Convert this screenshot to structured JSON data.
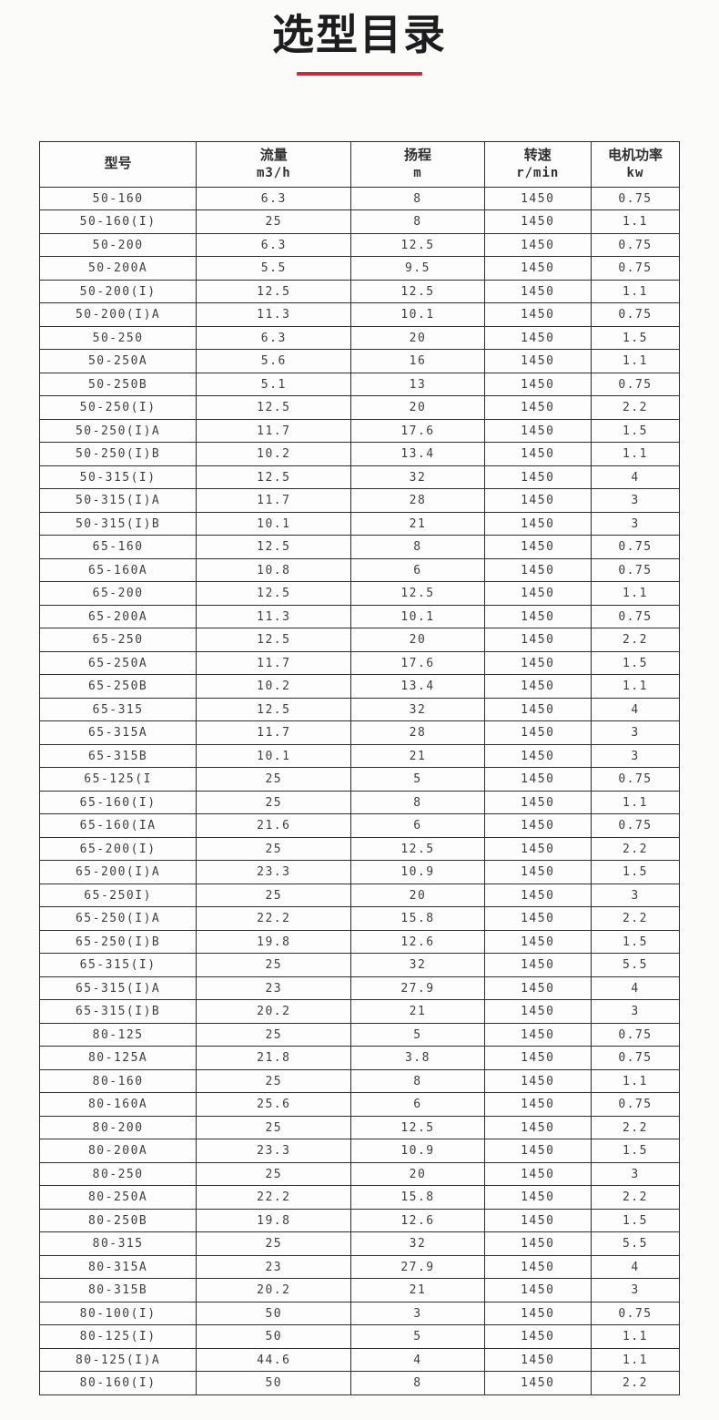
{
  "page": {
    "title": "选型目录",
    "accent_color": "#c42c3c"
  },
  "table": {
    "headers": [
      {
        "title": "型号",
        "unit": ""
      },
      {
        "title": "流量",
        "unit": "m3/h"
      },
      {
        "title": "扬程",
        "unit": "m"
      },
      {
        "title": "转速",
        "unit": "r/min"
      },
      {
        "title": "电机功率",
        "unit": "kw"
      }
    ],
    "rows": [
      [
        "50-160",
        "6.3",
        "8",
        "1450",
        "0.75"
      ],
      [
        "50-160(I)",
        "25",
        "8",
        "1450",
        "1.1"
      ],
      [
        "50-200",
        "6.3",
        "12.5",
        "1450",
        "0.75"
      ],
      [
        "50-200A",
        "5.5",
        "9.5",
        "1450",
        "0.75"
      ],
      [
        "50-200(I)",
        "12.5",
        "12.5",
        "1450",
        "1.1"
      ],
      [
        "50-200(I)A",
        "11.3",
        "10.1",
        "1450",
        "0.75"
      ],
      [
        "50-250",
        "6.3",
        "20",
        "1450",
        "1.5"
      ],
      [
        "50-250A",
        "5.6",
        "16",
        "1450",
        "1.1"
      ],
      [
        "50-250B",
        "5.1",
        "13",
        "1450",
        "0.75"
      ],
      [
        "50-250(I)",
        "12.5",
        "20",
        "1450",
        "2.2"
      ],
      [
        "50-250(I)A",
        "11.7",
        "17.6",
        "1450",
        "1.5"
      ],
      [
        "50-250(I)B",
        "10.2",
        "13.4",
        "1450",
        "1.1"
      ],
      [
        "50-315(I)",
        "12.5",
        "32",
        "1450",
        "4"
      ],
      [
        "50-315(I)A",
        "11.7",
        "28",
        "1450",
        "3"
      ],
      [
        "50-315(I)B",
        "10.1",
        "21",
        "1450",
        "3"
      ],
      [
        "65-160",
        "12.5",
        "8",
        "1450",
        "0.75"
      ],
      [
        "65-160A",
        "10.8",
        "6",
        "1450",
        "0.75"
      ],
      [
        "65-200",
        "12.5",
        "12.5",
        "1450",
        "1.1"
      ],
      [
        "65-200A",
        "11.3",
        "10.1",
        "1450",
        "0.75"
      ],
      [
        "65-250",
        "12.5",
        "20",
        "1450",
        "2.2"
      ],
      [
        "65-250A",
        "11.7",
        "17.6",
        "1450",
        "1.5"
      ],
      [
        "65-250B",
        "10.2",
        "13.4",
        "1450",
        "1.1"
      ],
      [
        "65-315",
        "12.5",
        "32",
        "1450",
        "4"
      ],
      [
        "65-315A",
        "11.7",
        "28",
        "1450",
        "3"
      ],
      [
        "65-315B",
        "10.1",
        "21",
        "1450",
        "3"
      ],
      [
        "65-125(I",
        "25",
        "5",
        "1450",
        "0.75"
      ],
      [
        "65-160(I)",
        "25",
        "8",
        "1450",
        "1.1"
      ],
      [
        "65-160(IA",
        "21.6",
        "6",
        "1450",
        "0.75"
      ],
      [
        "65-200(I)",
        "25",
        "12.5",
        "1450",
        "2.2"
      ],
      [
        "65-200(I)A",
        "23.3",
        "10.9",
        "1450",
        "1.5"
      ],
      [
        "65-250I)",
        "25",
        "20",
        "1450",
        "3"
      ],
      [
        "65-250(I)A",
        "22.2",
        "15.8",
        "1450",
        "2.2"
      ],
      [
        "65-250(I)B",
        "19.8",
        "12.6",
        "1450",
        "1.5"
      ],
      [
        "65-315(I)",
        "25",
        "32",
        "1450",
        "5.5"
      ],
      [
        "65-315(I)A",
        "23",
        "27.9",
        "1450",
        "4"
      ],
      [
        "65-315(I)B",
        "20.2",
        "21",
        "1450",
        "3"
      ],
      [
        "80-125",
        "25",
        "5",
        "1450",
        "0.75"
      ],
      [
        "80-125A",
        "21.8",
        "3.8",
        "1450",
        "0.75"
      ],
      [
        "80-160",
        "25",
        "8",
        "1450",
        "1.1"
      ],
      [
        "80-160A",
        "25.6",
        "6",
        "1450",
        "0.75"
      ],
      [
        "80-200",
        "25",
        "12.5",
        "1450",
        "2.2"
      ],
      [
        "80-200A",
        "23.3",
        "10.9",
        "1450",
        "1.5"
      ],
      [
        "80-250",
        "25",
        "20",
        "1450",
        "3"
      ],
      [
        "80-250A",
        "22.2",
        "15.8",
        "1450",
        "2.2"
      ],
      [
        "80-250B",
        "19.8",
        "12.6",
        "1450",
        "1.5"
      ],
      [
        "80-315",
        "25",
        "32",
        "1450",
        "5.5"
      ],
      [
        "80-315A",
        "23",
        "27.9",
        "1450",
        "4"
      ],
      [
        "80-315B",
        "20.2",
        "21",
        "1450",
        "3"
      ],
      [
        "80-100(I)",
        "50",
        "3",
        "1450",
        "0.75"
      ],
      [
        "80-125(I)",
        "50",
        "5",
        "1450",
        "1.1"
      ],
      [
        "80-125(I)A",
        "44.6",
        "4",
        "1450",
        "1.1"
      ],
      [
        "80-160(I)",
        "50",
        "8",
        "1450",
        "2.2"
      ]
    ]
  }
}
